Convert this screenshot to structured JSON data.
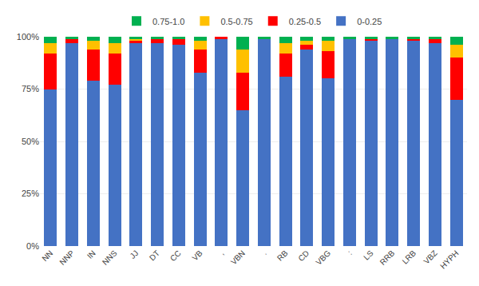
{
  "chart_data": {
    "type": "bar",
    "stacked": true,
    "categories": [
      "NN",
      "NNP",
      "IN",
      "NNS",
      "JJ",
      "DT",
      "CC",
      "VB",
      ",",
      "VBN",
      ".",
      "RB",
      "CD",
      "VBG",
      ":",
      "LS",
      "RRB",
      "LRB",
      "VBZ",
      "HYPH"
    ],
    "series": [
      {
        "name": "0-0.25",
        "color": "#4472C4",
        "values": [
          75,
          97,
          79,
          77,
          97,
          97,
          96,
          83,
          99,
          65,
          99,
          81,
          94,
          80,
          99,
          98,
          99,
          98,
          97,
          70
        ]
      },
      {
        "name": "0.25-0.5",
        "color": "#FF0000",
        "values": [
          17,
          2,
          15,
          15,
          1,
          2,
          3,
          11,
          1,
          18,
          0,
          11,
          2,
          13,
          0,
          1,
          0,
          1,
          2,
          20
        ]
      },
      {
        "name": "0.5-0.75",
        "color": "#FFC000",
        "values": [
          5,
          0,
          4,
          5,
          1,
          0,
          0,
          4,
          0,
          11,
          0,
          5,
          2,
          5,
          0,
          0,
          0,
          0,
          0,
          6
        ]
      },
      {
        "name": "0.75-1.0",
        "color": "#00B050",
        "values": [
          3,
          1,
          2,
          3,
          1,
          1,
          1,
          2,
          0,
          6,
          1,
          3,
          2,
          2,
          1,
          1,
          1,
          1,
          1,
          4
        ]
      }
    ],
    "ylim": [
      0,
      100
    ],
    "yticks": [
      {
        "value": 0,
        "label": "0%"
      },
      {
        "value": 25,
        "label": "25%"
      },
      {
        "value": 50,
        "label": "50%"
      },
      {
        "value": 75,
        "label": "75%"
      },
      {
        "value": 100,
        "label": "100%"
      }
    ],
    "grid": true,
    "legend": "top"
  }
}
